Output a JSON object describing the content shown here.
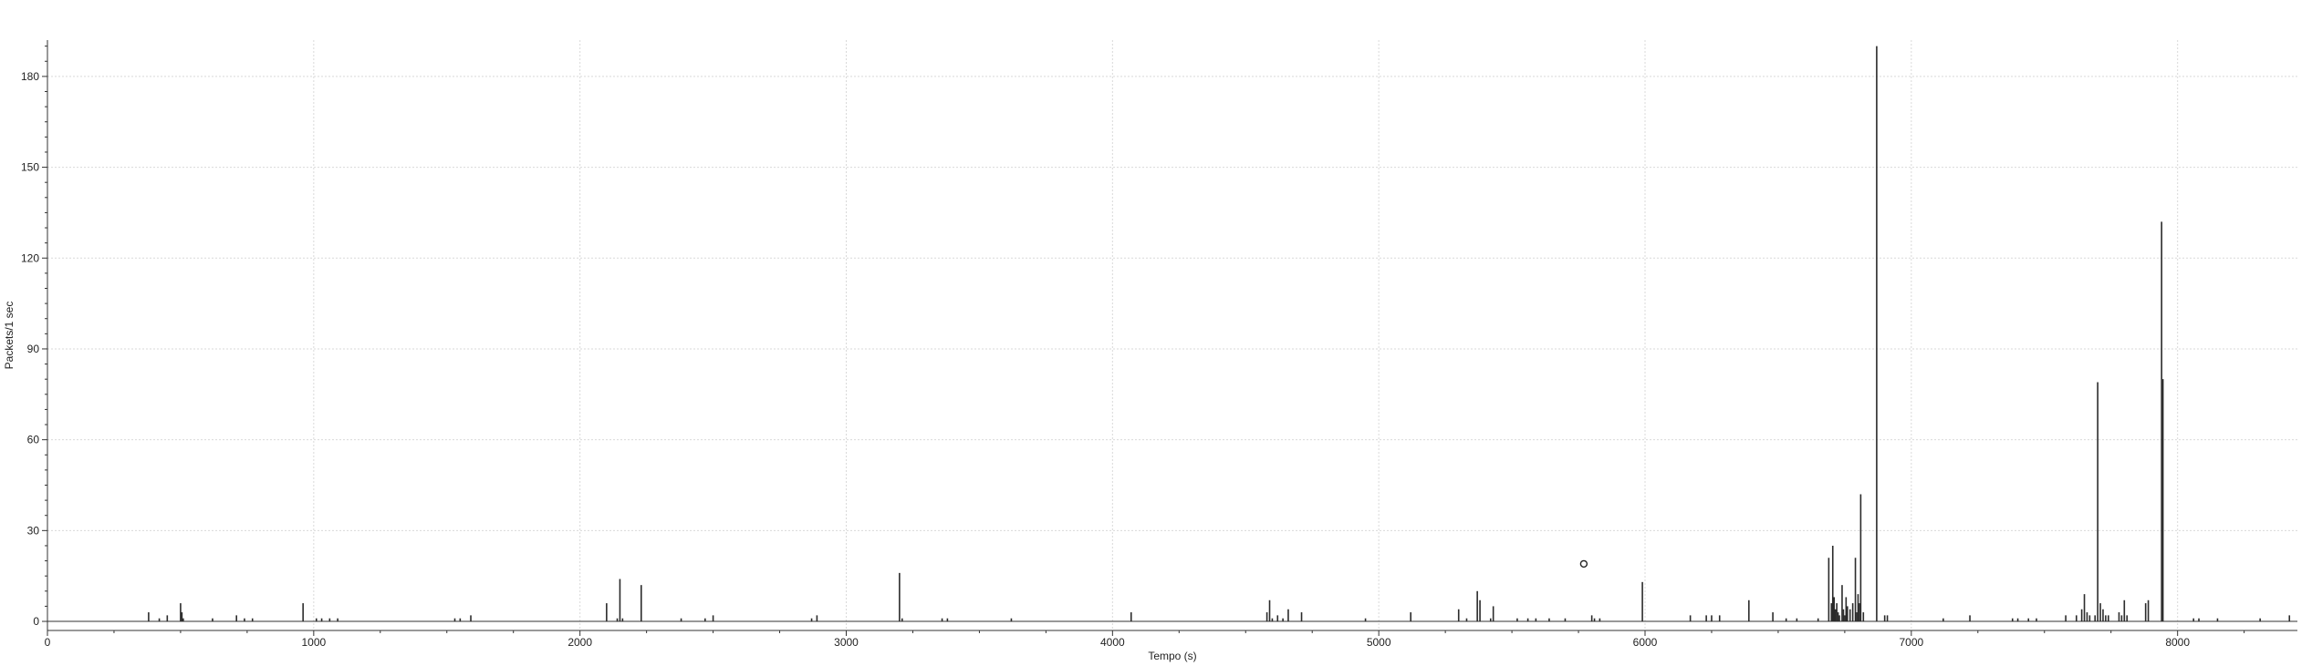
{
  "chart_data": {
    "type": "bar",
    "title": "",
    "xlabel": "Tempo (s)",
    "ylabel": "Packets/1 sec",
    "xlim": [
      0,
      8450
    ],
    "ylim": [
      -3,
      192
    ],
    "xticks": [
      0,
      1000,
      2000,
      3000,
      4000,
      5000,
      6000,
      7000,
      8000
    ],
    "yticks": [
      0,
      30,
      60,
      90,
      120,
      150,
      180
    ],
    "grid": true,
    "color": "#2b2b2b",
    "series": [
      {
        "x": [
          380,
          420,
          450,
          500,
          505,
          510,
          620,
          710,
          740,
          770,
          960,
          1010,
          1030,
          1060,
          1090,
          1530,
          1550,
          1590,
          2100,
          2140,
          2150,
          2160,
          2230,
          2380,
          2470,
          2500,
          2870,
          2890,
          3200,
          3210,
          3360,
          3380,
          3620,
          4070,
          4580,
          4590,
          4600,
          4620,
          4640,
          4660,
          4710,
          4950,
          5120,
          5300,
          5330,
          5370,
          5380,
          5420,
          5430,
          5520,
          5560,
          5590,
          5640,
          5700,
          5800,
          5810,
          5830,
          5990,
          6170,
          6230,
          6250,
          6280,
          6390,
          6480,
          6530,
          6570,
          6650,
          6690,
          6700,
          6705,
          6710,
          6715,
          6720,
          6725,
          6730,
          6740,
          6745,
          6750,
          6755,
          6760,
          6770,
          6780,
          6790,
          6795,
          6800,
          6805,
          6810,
          6820,
          6870,
          6900,
          6910,
          7120,
          7220,
          7380,
          7400,
          7440,
          7470,
          7580,
          7620,
          7640,
          7650,
          7660,
          7670,
          7690,
          7700,
          7710,
          7720,
          7730,
          7740,
          7780,
          7790,
          7800,
          7810,
          7880,
          7890,
          7940,
          7945,
          8060,
          8080,
          8150,
          8310,
          8420
        ],
        "values": [
          3,
          1,
          2,
          6,
          3,
          1,
          1,
          2,
          1,
          1,
          6,
          1,
          1,
          1,
          1,
          1,
          1,
          2,
          6,
          1,
          14,
          1,
          12,
          1,
          1,
          2,
          1,
          2,
          16,
          1,
          1,
          1,
          1,
          3,
          3,
          7,
          1,
          2,
          1,
          4,
          3,
          1,
          3,
          4,
          1,
          10,
          7,
          1,
          5,
          1,
          1,
          1,
          1,
          1,
          2,
          1,
          1,
          13,
          2,
          2,
          2,
          2,
          7,
          3,
          1,
          1,
          1,
          21,
          6,
          25,
          8,
          4,
          6,
          3,
          2,
          12,
          4,
          2,
          8,
          5,
          4,
          6,
          21,
          3,
          9,
          6,
          42,
          3,
          190,
          2,
          2,
          1,
          2,
          1,
          1,
          1,
          1,
          2,
          2,
          4,
          9,
          3,
          2,
          2,
          79,
          6,
          4,
          2,
          2,
          3,
          2,
          7,
          2,
          6,
          7,
          132,
          80,
          1,
          1,
          1,
          1,
          2
        ]
      }
    ],
    "annotations": [
      {
        "type": "marker",
        "x": 5770,
        "y": 19
      }
    ]
  }
}
